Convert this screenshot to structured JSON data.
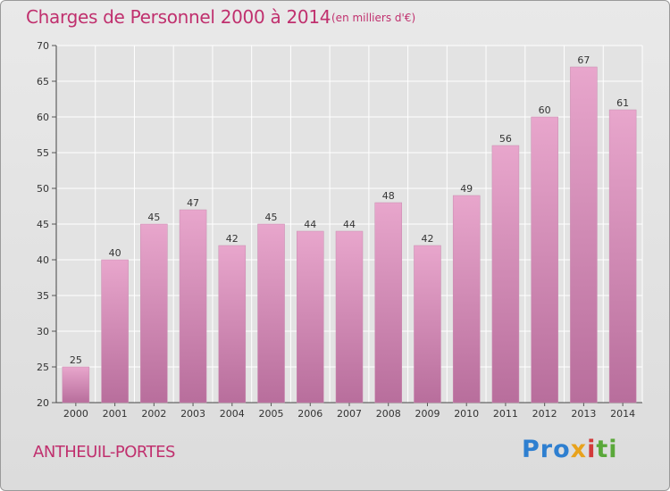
{
  "chart_data": {
    "type": "bar",
    "title": "Charges de Personnel 2000 à 2014",
    "subtitle": "(en milliers d'€)",
    "categories": [
      "2000",
      "2001",
      "2002",
      "2003",
      "2004",
      "2005",
      "2006",
      "2007",
      "2008",
      "2009",
      "2010",
      "2011",
      "2012",
      "2013",
      "2014"
    ],
    "values": [
      25,
      40,
      45,
      47,
      42,
      45,
      44,
      44,
      48,
      42,
      49,
      56,
      60,
      67,
      61
    ],
    "data_labels": [
      "25",
      "40",
      "45",
      "47",
      "42",
      "45",
      "44",
      "44",
      "48",
      "42",
      "49",
      "56",
      "60",
      "67",
      "61"
    ],
    "xlabel": "",
    "ylabel": "",
    "ylim": [
      20,
      70
    ],
    "yticks": [
      20,
      25,
      30,
      35,
      40,
      45,
      50,
      55,
      60,
      65,
      70
    ],
    "ytick_labels": [
      "20",
      "25",
      "30",
      "35",
      "40",
      "45",
      "50",
      "55",
      "60",
      "65",
      "70"
    ],
    "grid": true,
    "bar_color": "#d98ab8",
    "text_color": "#c0306e"
  },
  "footer": {
    "commune": "ANTHEUIL-PORTES",
    "logo_parts": [
      "Pro",
      "x",
      "i",
      "ti"
    ]
  },
  "colors": {
    "background": "#e3e3e3",
    "grid": "#ffffff",
    "title": "#c0306e"
  }
}
